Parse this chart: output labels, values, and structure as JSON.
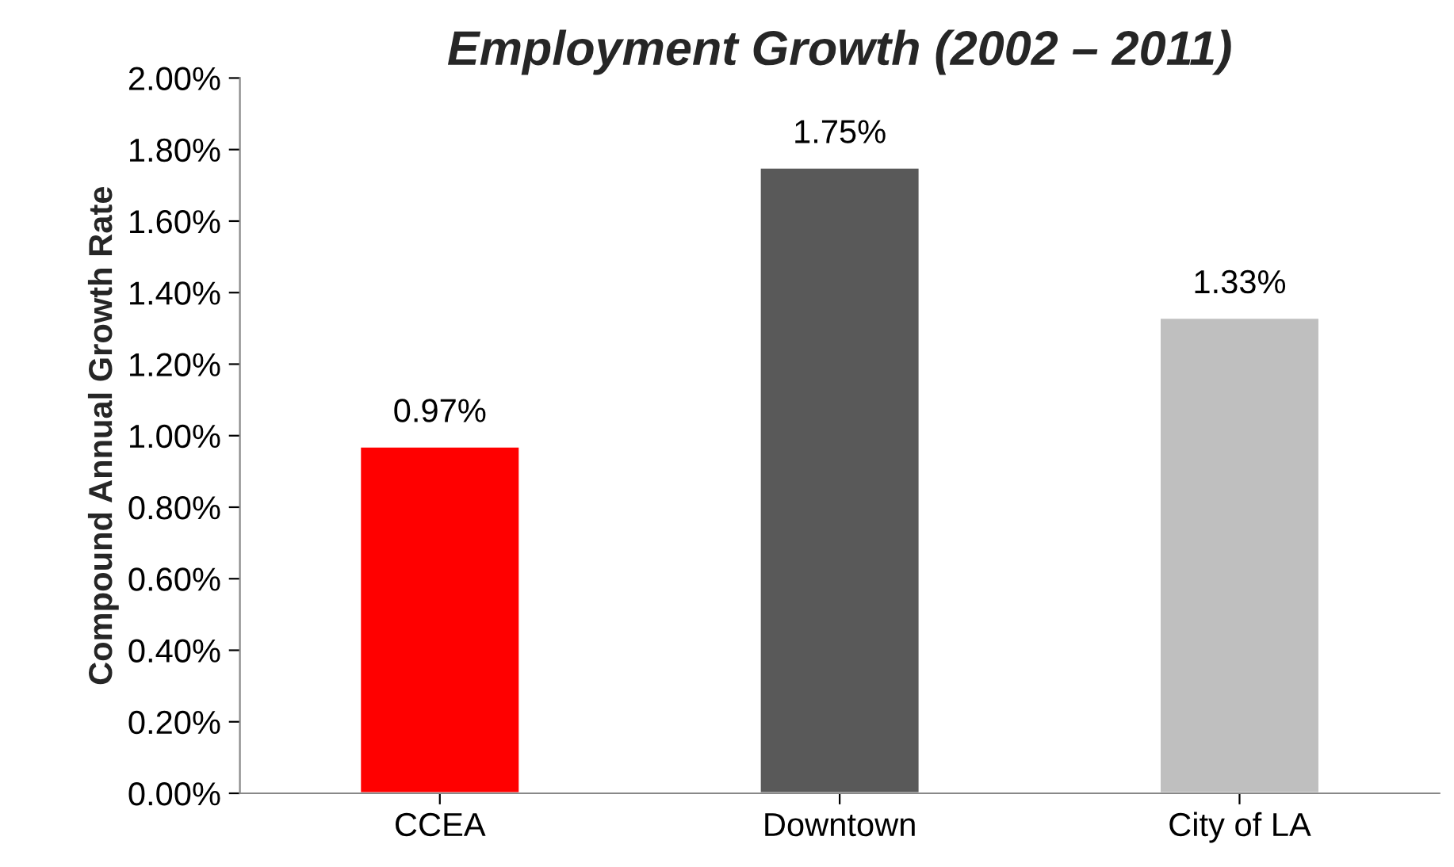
{
  "chart_data": {
    "type": "bar",
    "title": "Employment Growth (2002 – 2011)",
    "ylabel": "Compound Annual Growth Rate",
    "categories": [
      "CCEA",
      "Downtown",
      "City of LA"
    ],
    "values": [
      0.97,
      1.75,
      1.33
    ],
    "colors": [
      "#ff0000",
      "#595959",
      "#bfbfbf"
    ],
    "value_labels": [
      "0.97%",
      "1.75%",
      "1.33%"
    ],
    "ylim": [
      0,
      2
    ],
    "yticks": [
      {
        "value": 0,
        "label": "0.00%"
      },
      {
        "value": 0.2,
        "label": "0.20%"
      },
      {
        "value": 0.4,
        "label": "0.40%"
      },
      {
        "value": 0.6,
        "label": "0.60%"
      },
      {
        "value": 0.8,
        "label": "0.80%"
      },
      {
        "value": 1.0,
        "label": "1.00%"
      },
      {
        "value": 1.2,
        "label": "1.20%"
      },
      {
        "value": 1.4,
        "label": "1.40%"
      },
      {
        "value": 1.6,
        "label": "1.60%"
      },
      {
        "value": 1.8,
        "label": "1.80%"
      },
      {
        "value": 2.0,
        "label": "2.00%"
      }
    ],
    "grid": false,
    "legend": false
  }
}
